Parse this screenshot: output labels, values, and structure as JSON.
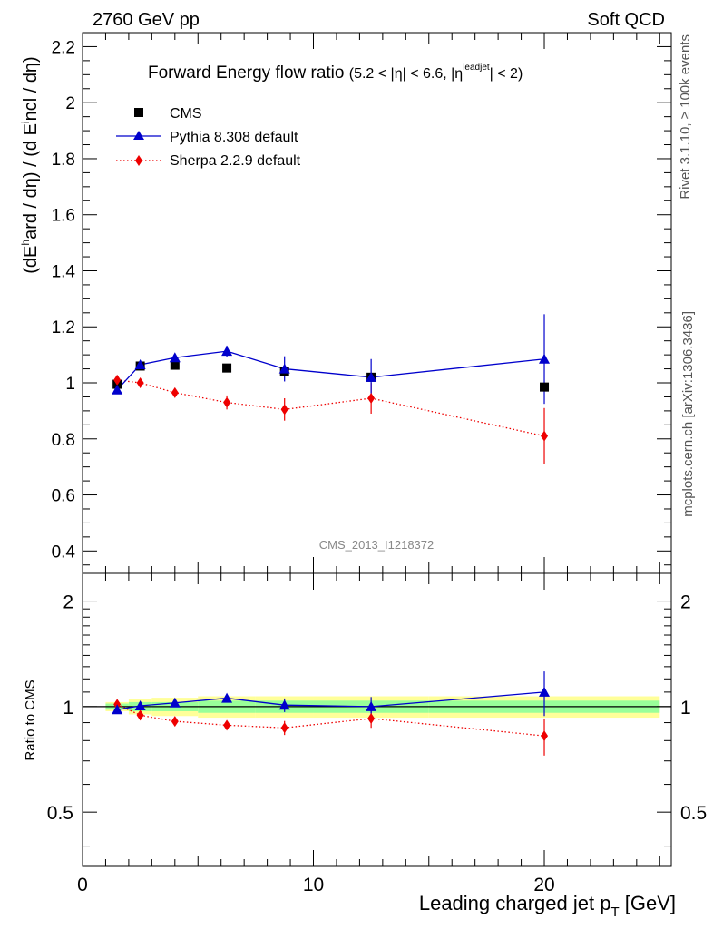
{
  "header": {
    "left": "2760 GeV pp",
    "right": "Soft QCD"
  },
  "side_text": {
    "rivet": "Rivet 3.1.10, ≥ 100k events",
    "mcplots": "mcplots.cern.ch [arXiv:1306.3436]"
  },
  "analysis_id": "CMS_2013_I1218372",
  "colors": {
    "cms": "#000000",
    "pythia": "#0000cc",
    "sherpa": "#ee0000",
    "band_inner": "#99ff99",
    "band_outer": "#ffff99"
  },
  "chart_data": [
    {
      "type": "scatter",
      "title": "Forward Energy flow ratio",
      "title_cut": "(5.2 < |η| < 6.6, |ηleadjet| < 2)",
      "ylabel": "(dEhard / dη) / (d Eincl / dη)",
      "xlim": [
        0,
        25.5
      ],
      "ylim": [
        0.32,
        2.25
      ],
      "x_ticks": [
        0,
        10,
        20
      ],
      "y_ticks": [
        0.4,
        0.6,
        0.8,
        1,
        1.2,
        1.4,
        1.6,
        1.8,
        2,
        2.2
      ],
      "legend_position": "top-left",
      "legend": [
        "CMS",
        "Pythia 8.308 default",
        "Sherpa 2.2.9 default"
      ],
      "series": [
        {
          "name": "CMS",
          "style": "square-marker",
          "x": [
            1.5,
            2.5,
            4.0,
            6.25,
            8.75,
            12.5,
            20.0
          ],
          "y": [
            0.995,
            1.06,
            1.063,
            1.053,
            1.04,
            1.02,
            0.985
          ]
        },
        {
          "name": "Pythia 8.308 default",
          "style": "triangle-solid-line",
          "x": [
            1.5,
            2.5,
            4.0,
            6.25,
            8.75,
            12.5,
            20.0
          ],
          "y": [
            0.975,
            1.065,
            1.09,
            1.113,
            1.05,
            1.02,
            1.085
          ],
          "err_up": [
            0.005,
            0.008,
            0.01,
            0.02,
            0.045,
            0.065,
            0.16
          ],
          "err_down": [
            0.005,
            0.008,
            0.01,
            0.02,
            0.045,
            0.065,
            0.16
          ]
        },
        {
          "name": "Sherpa 2.2.9 default",
          "style": "diamond-dotted-line",
          "x": [
            1.5,
            2.5,
            4.0,
            6.25,
            8.75,
            12.5,
            20.0
          ],
          "y": [
            1.01,
            1.0,
            0.965,
            0.93,
            0.905,
            0.945,
            0.81
          ],
          "err_up": [
            0.005,
            0.008,
            0.012,
            0.025,
            0.04,
            0.055,
            0.1
          ],
          "err_down": [
            0.005,
            0.008,
            0.012,
            0.025,
            0.04,
            0.055,
            0.1
          ]
        }
      ]
    },
    {
      "type": "scatter",
      "ylabel": "Ratio to CMS",
      "xlabel": "Leading charged jet pT [GeV]",
      "xlim": [
        0,
        25.5
      ],
      "ylim": [
        0.35,
        2.4
      ],
      "log_y": true,
      "y_ticks": [
        0.5,
        1,
        2
      ],
      "x_ticks": [
        0,
        10,
        20
      ],
      "bands": {
        "x_edges": [
          1,
          2,
          3,
          5,
          7.5,
          10,
          15,
          25
        ],
        "inner_halfwidth": [
          0.02,
          0.03,
          0.03,
          0.04,
          0.04,
          0.04,
          0.04
        ],
        "outer_halfwidth": [
          0.03,
          0.05,
          0.06,
          0.07,
          0.07,
          0.07,
          0.07
        ]
      },
      "series": [
        {
          "name": "Pythia 8.308 default",
          "x": [
            1.5,
            2.5,
            4.0,
            6.25,
            8.75,
            12.5,
            20.0
          ],
          "y": [
            0.98,
            1.005,
            1.025,
            1.057,
            1.01,
            1.0,
            1.1
          ],
          "err_up": [
            0.005,
            0.008,
            0.01,
            0.02,
            0.045,
            0.065,
            0.16
          ],
          "err_down": [
            0.005,
            0.008,
            0.01,
            0.02,
            0.045,
            0.065,
            0.16
          ]
        },
        {
          "name": "Sherpa 2.2.9 default",
          "x": [
            1.5,
            2.5,
            4.0,
            6.25,
            8.75,
            12.5,
            20.0
          ],
          "y": [
            1.015,
            0.945,
            0.908,
            0.885,
            0.87,
            0.925,
            0.825
          ],
          "err_up": [
            0.005,
            0.008,
            0.012,
            0.025,
            0.04,
            0.055,
            0.1
          ],
          "err_down": [
            0.005,
            0.008,
            0.012,
            0.025,
            0.04,
            0.055,
            0.1
          ]
        }
      ]
    }
  ]
}
